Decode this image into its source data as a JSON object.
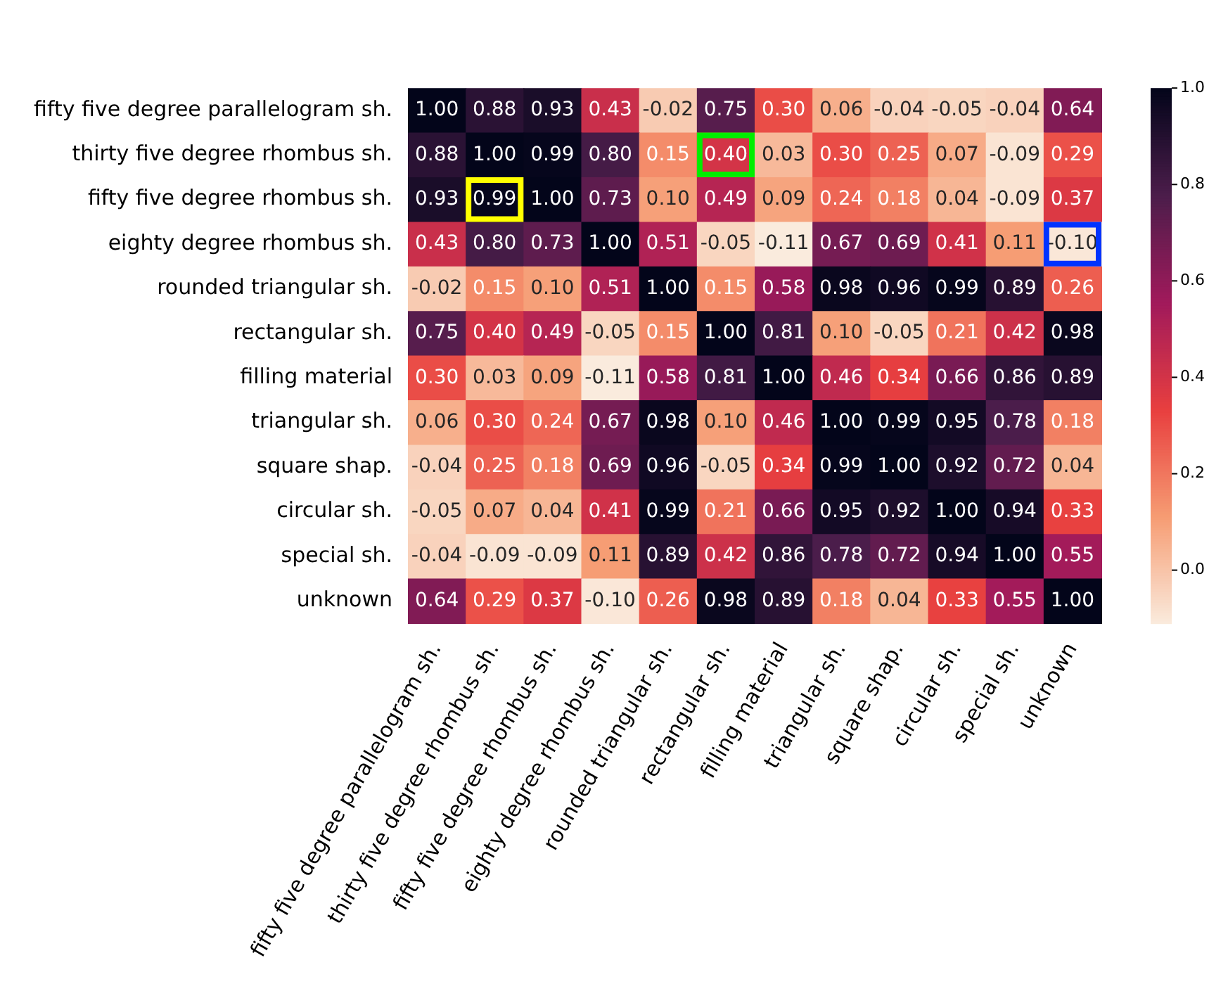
{
  "chart_data": {
    "type": "heatmap",
    "categories": [
      "fifty five degree parallelogram sh.",
      "thirty five degree rhombus sh.",
      "fifty five degree rhombus sh.",
      "eighty degree rhombus sh.",
      "rounded triangular sh.",
      "rectangular sh.",
      "filling material",
      "triangular sh.",
      "square shap.",
      "circular sh.",
      "special sh.",
      "unknown"
    ],
    "y_categories": [
      "fifty five degree parallelogram sh.",
      "thirty five degree rhombus sh.",
      "fifty five degree rhombus sh.",
      "eighty degree rhombus sh.",
      "rounded triangular sh.",
      "rectangular sh.",
      "filling material",
      "triangular sh.",
      "square shap.",
      "circular sh.",
      "special sh.",
      "unknown"
    ],
    "cells": [
      [
        1.0,
        0.88,
        0.93,
        0.43,
        -0.02,
        0.75,
        0.3,
        0.06,
        -0.04,
        -0.05,
        -0.04,
        0.64
      ],
      [
        0.88,
        1.0,
        0.99,
        0.8,
        0.15,
        0.4,
        0.03,
        0.3,
        0.25,
        0.07,
        -0.09,
        0.29
      ],
      [
        0.93,
        0.99,
        1.0,
        0.73,
        0.1,
        0.49,
        0.09,
        0.24,
        0.18,
        0.04,
        -0.09,
        0.37
      ],
      [
        0.43,
        0.8,
        0.73,
        1.0,
        0.51,
        -0.05,
        -0.11,
        0.67,
        0.69,
        0.41,
        0.11,
        -0.1
      ],
      [
        -0.02,
        0.15,
        0.1,
        0.51,
        1.0,
        0.15,
        0.58,
        0.98,
        0.96,
        0.99,
        0.89,
        0.26
      ],
      [
        0.75,
        0.4,
        0.49,
        -0.05,
        0.15,
        1.0,
        0.81,
        0.1,
        -0.05,
        0.21,
        0.42,
        0.98
      ],
      [
        0.3,
        0.03,
        0.09,
        -0.11,
        0.58,
        0.81,
        1.0,
        0.46,
        0.34,
        0.66,
        0.86,
        0.89
      ],
      [
        0.06,
        0.3,
        0.24,
        0.67,
        0.98,
        0.1,
        0.46,
        1.0,
        0.99,
        0.95,
        0.78,
        0.18
      ],
      [
        -0.04,
        0.25,
        0.18,
        0.69,
        0.96,
        -0.05,
        0.34,
        0.99,
        1.0,
        0.92,
        0.72,
        0.04
      ],
      [
        -0.05,
        0.07,
        0.04,
        0.41,
        0.99,
        0.21,
        0.66,
        0.95,
        0.92,
        1.0,
        0.94,
        0.33
      ],
      [
        -0.04,
        -0.09,
        -0.09,
        0.11,
        0.89,
        0.42,
        0.86,
        0.78,
        0.72,
        0.94,
        1.0,
        0.55
      ],
      [
        0.64,
        0.29,
        0.37,
        -0.1,
        0.26,
        0.98,
        0.89,
        0.18,
        0.04,
        0.33,
        0.55,
        1.0
      ]
    ],
    "cell_labels": [
      [
        "1.00",
        "0.88",
        "0.93",
        "0.43",
        "-0.02",
        "0.75",
        "0.30",
        "0.06",
        "-0.04",
        "-0.05",
        "-0.04",
        "0.64"
      ],
      [
        "0.88",
        "1.00",
        "0.99",
        "0.80",
        "0.15",
        "0.40",
        "0.03",
        "0.30",
        "0.25",
        "0.07",
        "-0.09",
        "0.29"
      ],
      [
        "0.93",
        "0.99",
        "1.00",
        "0.73",
        "0.10",
        "0.49",
        "0.09",
        "0.24",
        "0.18",
        "0.04",
        "-0.09",
        "0.37"
      ],
      [
        "0.43",
        "0.80",
        "0.73",
        "1.00",
        "0.51",
        "-0.05",
        "-0.11",
        "0.67",
        "0.69",
        "0.41",
        "0.11",
        "-0.10"
      ],
      [
        "-0.02",
        "0.15",
        "0.10",
        "0.51",
        "1.00",
        "0.15",
        "0.58",
        "0.98",
        "0.96",
        "0.99",
        "0.89",
        "0.26"
      ],
      [
        "0.75",
        "0.40",
        "0.49",
        "-0.05",
        "0.15",
        "1.00",
        "0.81",
        "0.10",
        "-0.05",
        "0.21",
        "0.42",
        "0.98"
      ],
      [
        "0.30",
        "0.03",
        "0.09",
        "-0.11",
        "0.58",
        "0.81",
        "1.00",
        "0.46",
        "0.34",
        "0.66",
        "0.86",
        "0.89"
      ],
      [
        "0.06",
        "0.30",
        "0.24",
        "0.67",
        "0.98",
        "0.10",
        "0.46",
        "1.00",
        "0.99",
        "0.95",
        "0.78",
        "0.18"
      ],
      [
        "-0.04",
        "0.25",
        "0.18",
        "0.69",
        "0.96",
        "-0.05",
        "0.34",
        "0.99",
        "1.00",
        "0.92",
        "0.72",
        "0.04"
      ],
      [
        "-0.05",
        "0.07",
        "0.04",
        "0.41",
        "0.99",
        "0.21",
        "0.66",
        "0.95",
        "0.92",
        "1.00",
        "0.94",
        "0.33"
      ],
      [
        "-0.04",
        "-0.09",
        "-0.09",
        "0.11",
        "0.89",
        "0.42",
        "0.86",
        "0.78",
        "0.72",
        "0.94",
        "1.00",
        "0.55"
      ],
      [
        "0.64",
        "0.29",
        "0.37",
        "-0.10",
        "0.26",
        "0.98",
        "0.89",
        "0.18",
        "0.04",
        "0.33",
        "0.55",
        "1.00"
      ]
    ],
    "clim": [
      -0.11,
      1.0
    ],
    "cticks": [
      {
        "value": 0,
        "label": "0.0"
      },
      {
        "value": 0.2,
        "label": "0.2"
      },
      {
        "value": 0.4,
        "label": "0.4"
      },
      {
        "value": 0.6,
        "label": "0.6"
      },
      {
        "value": 0.8,
        "label": "0.8"
      },
      {
        "value": 1.0,
        "label": "1.0"
      }
    ],
    "data_labels": true
  }
}
